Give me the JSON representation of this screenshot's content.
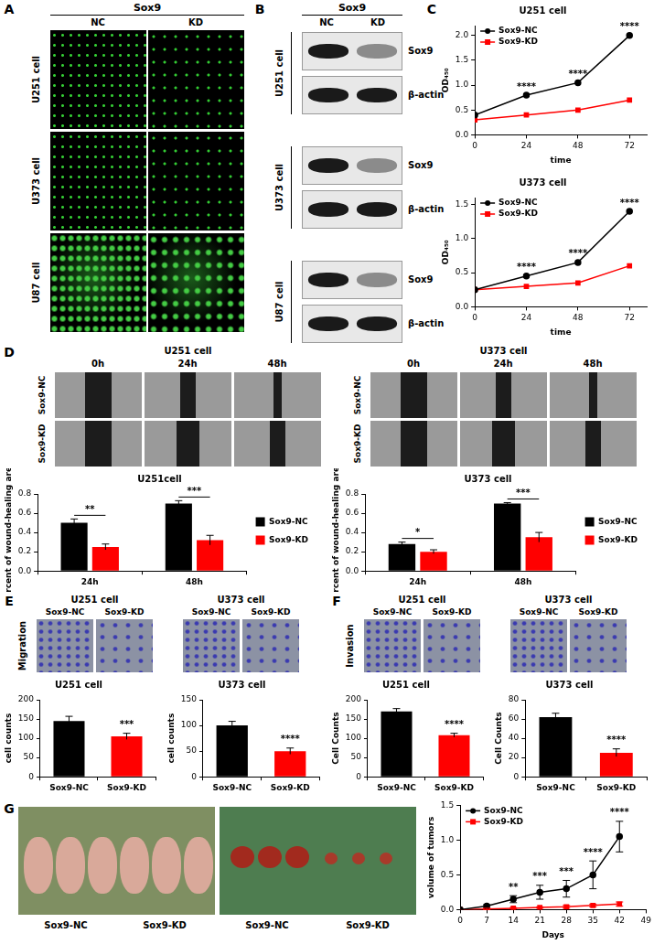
{
  "figure": {
    "A": {
      "letter": "A",
      "header": "Sox9",
      "columns": [
        "NC",
        "KD"
      ],
      "rows": [
        "U251 cell",
        "U373 cell",
        "U87 cell"
      ]
    },
    "B": {
      "letter": "B",
      "header": "Sox9",
      "columns": [
        "NC",
        "KD"
      ],
      "groups": [
        "U251 cell",
        "U373 cell",
        "U87 cell"
      ],
      "bands": [
        "Sox9",
        "β-actin"
      ]
    },
    "C": {
      "letter": "C"
    },
    "D": {
      "letter": "D",
      "groups": [
        "U251 cell",
        "U373 cell"
      ],
      "columns": [
        "0h",
        "24h",
        "48h"
      ],
      "rows": [
        "Sox9-NC",
        "Sox9-KD"
      ]
    },
    "E": {
      "letter": "E",
      "side_label": "Migration",
      "groups": [
        "U251 cell",
        "U373 cell"
      ],
      "columns": [
        "Sox9-NC",
        "Sox9-KD"
      ]
    },
    "F": {
      "letter": "F",
      "side_label": "Invasion",
      "groups": [
        "U251 cell",
        "U373 cell"
      ],
      "columns": [
        "Sox9-NC",
        "Sox9-KD"
      ]
    },
    "G": {
      "letter": "G",
      "mice_captions": [
        "Sox9-NC",
        "Sox9-KD"
      ],
      "tumor_captions": [
        "Sox9-NC",
        "Sox9-KD"
      ]
    }
  },
  "chart_data": [
    {
      "type": "line",
      "title": "U251 cell",
      "x_label": "time",
      "y_label": "OD₄₅₀",
      "x": [
        0,
        24,
        48,
        72
      ],
      "xlim": [
        0,
        80
      ],
      "xticks": [
        0,
        24,
        48,
        72
      ],
      "ylim": [
        0,
        2.2
      ],
      "yticks": [
        {
          "value": 0,
          "label": "0.0"
        },
        0.5,
        {
          "value": 1,
          "label": "1.0"
        },
        1.5,
        {
          "value": 2,
          "label": "2.0"
        }
      ],
      "series": [
        {
          "name": "Sox9-NC",
          "color": "#000000",
          "marker": "circle",
          "values": [
            0.4,
            0.8,
            1.05,
            2.0
          ]
        },
        {
          "name": "Sox9-KD",
          "color": "#ff0000",
          "marker": "square",
          "values": [
            0.3,
            0.4,
            0.5,
            0.7
          ]
        }
      ],
      "annotations": [
        {
          "x": 24,
          "text": "****"
        },
        {
          "x": 48,
          "text": "****"
        },
        {
          "x": 72,
          "text": "****"
        }
      ],
      "legend": "top-left",
      "grid": false
    },
    {
      "type": "line",
      "title": "U373 cell",
      "x_label": "time",
      "y_label": "OD₄₅₀",
      "x": [
        0,
        24,
        48,
        72
      ],
      "xlim": [
        0,
        80
      ],
      "xticks": [
        0,
        24,
        48,
        72
      ],
      "ylim": [
        0,
        1.6
      ],
      "yticks": [
        {
          "value": 0,
          "label": "0.0"
        },
        0.5,
        {
          "value": 1,
          "label": "1.0"
        },
        1.5
      ],
      "series": [
        {
          "name": "Sox9-NC",
          "color": "#000000",
          "marker": "circle",
          "values": [
            0.25,
            0.45,
            0.65,
            1.4
          ]
        },
        {
          "name": "Sox9-KD",
          "color": "#ff0000",
          "marker": "square",
          "values": [
            0.25,
            0.3,
            0.35,
            0.6
          ]
        }
      ],
      "annotations": [
        {
          "x": 24,
          "text": "****"
        },
        {
          "x": 48,
          "text": "****"
        },
        {
          "x": 72,
          "text": "****"
        }
      ],
      "legend": "top-left",
      "grid": false
    },
    {
      "type": "bar",
      "title": "U251cell",
      "y_label": "percent of wound-healing area",
      "categories": [
        "24h",
        "48h"
      ],
      "series": [
        {
          "name": "Sox9-NC",
          "color": "#000000",
          "values": [
            0.5,
            0.7
          ],
          "errors": [
            0.04,
            0.03
          ]
        },
        {
          "name": "Sox9-KD",
          "color": "#ff0000",
          "values": [
            0.25,
            0.32
          ],
          "errors": [
            0.03,
            0.05
          ]
        }
      ],
      "ylim": [
        0,
        0.8
      ],
      "yticks": [
        {
          "value": 0,
          "label": "0.0"
        },
        0.2,
        0.4,
        0.6,
        0.8
      ],
      "annotations": [
        {
          "category": "24h",
          "text": "**"
        },
        {
          "category": "48h",
          "text": "***"
        }
      ],
      "legend": "right",
      "grid": false
    },
    {
      "type": "bar",
      "title": "U373 cell",
      "y_label": "percent of wound-healing area",
      "categories": [
        "24h",
        "48h"
      ],
      "series": [
        {
          "name": "Sox9-NC",
          "color": "#000000",
          "values": [
            0.28,
            0.7
          ],
          "errors": [
            0.02,
            0.01
          ]
        },
        {
          "name": "Sox9-KD",
          "color": "#ff0000",
          "values": [
            0.2,
            0.35
          ],
          "errors": [
            0.02,
            0.05
          ]
        }
      ],
      "ylim": [
        0,
        0.8
      ],
      "yticks": [
        {
          "value": 0,
          "label": "0.0"
        },
        0.2,
        0.4,
        0.6,
        0.8
      ],
      "annotations": [
        {
          "category": "24h",
          "text": "*"
        },
        {
          "category": "48h",
          "text": "***"
        }
      ],
      "legend": "right",
      "grid": false
    },
    {
      "type": "bar",
      "title": "U251 cell",
      "y_label": "cell counts",
      "categories": [
        "Sox9-NC",
        "Sox9-KD"
      ],
      "values": [
        145,
        105
      ],
      "errors": [
        12,
        8
      ],
      "colors": [
        "#000000",
        "#ff0000"
      ],
      "ylim": [
        0,
        200
      ],
      "yticks": [
        0,
        50,
        100,
        150,
        200
      ],
      "annotations": [
        {
          "category": "Sox9-KD",
          "text": "***"
        }
      ],
      "grid": false
    },
    {
      "type": "bar",
      "title": "U373 cell",
      "y_label": "cell counts",
      "categories": [
        "Sox9-NC",
        "Sox9-KD"
      ],
      "values": [
        100,
        50
      ],
      "errors": [
        8,
        6
      ],
      "colors": [
        "#000000",
        "#ff0000"
      ],
      "ylim": [
        0,
        150
      ],
      "yticks": [
        0,
        50,
        100,
        150
      ],
      "annotations": [
        {
          "category": "Sox9-KD",
          "text": "****"
        }
      ],
      "grid": false
    },
    {
      "type": "bar",
      "title": "U251 cell",
      "y_label": "Cell Counts",
      "categories": [
        "Sox9-NC",
        "Sox9-KD"
      ],
      "values": [
        170,
        108
      ],
      "errors": [
        7,
        5
      ],
      "colors": [
        "#000000",
        "#ff0000"
      ],
      "ylim": [
        0,
        200
      ],
      "yticks": [
        0,
        50,
        100,
        150,
        200
      ],
      "annotations": [
        {
          "category": "Sox9-KD",
          "text": "****"
        }
      ],
      "grid": false
    },
    {
      "type": "bar",
      "title": "U373 cell",
      "y_label": "Cell Counts",
      "categories": [
        "Sox9-NC",
        "Sox9-KD"
      ],
      "values": [
        62,
        25
      ],
      "errors": [
        4,
        4
      ],
      "colors": [
        "#000000",
        "#ff0000"
      ],
      "ylim": [
        0,
        80
      ],
      "yticks": [
        0,
        20,
        40,
        60,
        80
      ],
      "annotations": [
        {
          "category": "Sox9-KD",
          "text": "****"
        }
      ],
      "grid": false
    },
    {
      "type": "line",
      "x_label": "Days",
      "y_label": "volume of tumors",
      "x": [
        0,
        7,
        14,
        21,
        28,
        35,
        42
      ],
      "xlim": [
        0,
        49
      ],
      "xticks": [
        0,
        7,
        14,
        21,
        28,
        35,
        42,
        49
      ],
      "ylim": [
        0,
        1.5
      ],
      "yticks": [
        {
          "value": 0,
          "label": "0.0"
        },
        0.5,
        {
          "value": 1,
          "label": "1.0"
        },
        1.5
      ],
      "series": [
        {
          "name": "Sox9-NC",
          "color": "#000000",
          "marker": "circle",
          "values": [
            0,
            0.05,
            0.15,
            0.25,
            0.3,
            0.5,
            1.05
          ],
          "errors": [
            0,
            0.02,
            0.05,
            0.1,
            0.12,
            0.2,
            0.22
          ]
        },
        {
          "name": "Sox9-KD",
          "color": "#ff0000",
          "marker": "square",
          "values": [
            0,
            0.01,
            0.02,
            0.03,
            0.04,
            0.06,
            0.08
          ],
          "errors": [
            0,
            0.01,
            0.01,
            0.01,
            0.02,
            0.02,
            0.03
          ]
        }
      ],
      "annotations": [
        {
          "x": 14,
          "text": "**"
        },
        {
          "x": 21,
          "text": "***"
        },
        {
          "x": 28,
          "text": "***"
        },
        {
          "x": 35,
          "text": "****"
        },
        {
          "x": 42,
          "text": "****"
        }
      ],
      "legend": "top-left",
      "grid": false
    }
  ]
}
